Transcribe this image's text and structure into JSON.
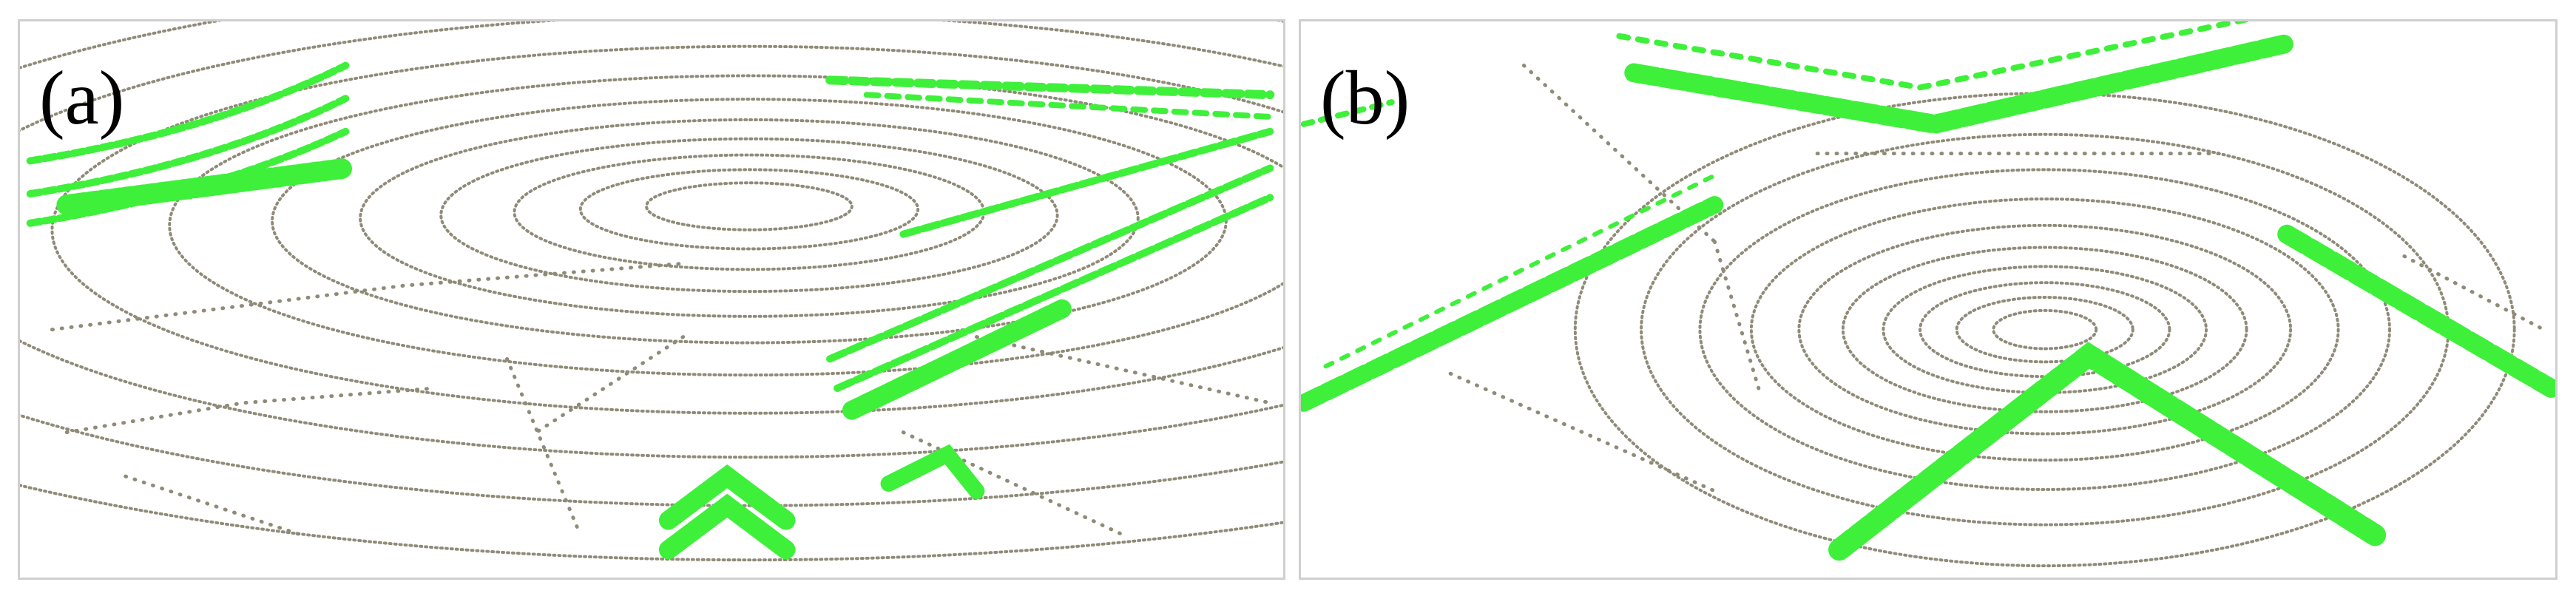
{
  "figure": {
    "panels": [
      {
        "id": "a",
        "label": "(a)"
      },
      {
        "id": "b",
        "label": "(b)"
      }
    ],
    "colors": {
      "ground_points": "#8f8b78",
      "highlighted_points": "#3ef03a",
      "panel_border": "#cfcfcf"
    }
  }
}
